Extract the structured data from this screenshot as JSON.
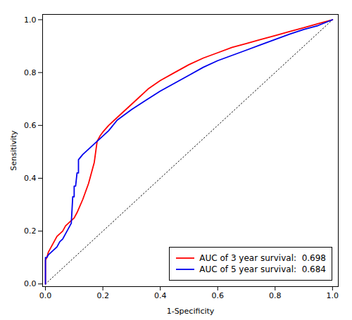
{
  "chart_data": {
    "type": "line",
    "xlabel": "1-Specificity",
    "ylabel": "Sensitivity",
    "xlim": [
      -0.01,
      1.02
    ],
    "ylim": [
      -0.01,
      1.02
    ],
    "xticks": [
      {
        "value": 0,
        "label": "0.0"
      },
      0.2,
      0.4,
      0.6,
      0.8,
      {
        "value": 1,
        "label": "1.0"
      }
    ],
    "yticks": [
      {
        "value": 0,
        "label": "0.0"
      },
      0.2,
      0.4,
      0.6,
      0.8,
      {
        "value": 1,
        "label": "1.0"
      }
    ],
    "grid": false,
    "legend": "lower right",
    "series": [
      {
        "color": "#000000",
        "line_style": "dotted",
        "x": [
          0,
          1
        ],
        "values": [
          0,
          1
        ]
      },
      {
        "name": "AUC of 3 year survival:  0.698",
        "color": "#FF0000",
        "line_style": "solid",
        "x": [
          0.0,
          0.0,
          0.005,
          0.01,
          0.02,
          0.03,
          0.04,
          0.05,
          0.06,
          0.07,
          0.08,
          0.09,
          0.1,
          0.11,
          0.13,
          0.15,
          0.17,
          0.18,
          0.19,
          0.2,
          0.22,
          0.25,
          0.28,
          0.32,
          0.36,
          0.4,
          0.45,
          0.5,
          0.55,
          0.6,
          0.65,
          0.7,
          0.75,
          0.8,
          0.85,
          0.9,
          0.95,
          1.0
        ],
        "values": [
          0.0,
          0.09,
          0.1,
          0.12,
          0.14,
          0.16,
          0.18,
          0.19,
          0.2,
          0.22,
          0.23,
          0.24,
          0.25,
          0.27,
          0.32,
          0.38,
          0.46,
          0.54,
          0.56,
          0.575,
          0.6,
          0.63,
          0.66,
          0.7,
          0.74,
          0.77,
          0.8,
          0.83,
          0.855,
          0.875,
          0.895,
          0.91,
          0.925,
          0.94,
          0.955,
          0.97,
          0.985,
          1.0
        ]
      },
      {
        "name": "AUC of 5 year survival:  0.684",
        "color": "#0000EE",
        "line_style": "solid",
        "x": [
          0.0,
          0.0,
          0.005,
          0.01,
          0.02,
          0.03,
          0.04,
          0.05,
          0.06,
          0.07,
          0.08,
          0.09,
          0.095,
          0.1,
          0.1,
          0.105,
          0.11,
          0.115,
          0.115,
          0.13,
          0.14,
          0.15,
          0.16,
          0.18,
          0.2,
          0.22,
          0.25,
          0.3,
          0.35,
          0.4,
          0.45,
          0.5,
          0.55,
          0.6,
          0.65,
          0.7,
          0.75,
          0.8,
          0.85,
          0.9,
          0.95,
          1.0
        ],
        "values": [
          0.0,
          0.1,
          0.1,
          0.11,
          0.12,
          0.13,
          0.14,
          0.16,
          0.17,
          0.19,
          0.21,
          0.23,
          0.33,
          0.33,
          0.37,
          0.37,
          0.42,
          0.42,
          0.47,
          0.49,
          0.5,
          0.51,
          0.52,
          0.54,
          0.56,
          0.58,
          0.62,
          0.66,
          0.695,
          0.73,
          0.76,
          0.79,
          0.82,
          0.845,
          0.865,
          0.885,
          0.905,
          0.925,
          0.945,
          0.963,
          0.978,
          1.0
        ]
      }
    ]
  }
}
